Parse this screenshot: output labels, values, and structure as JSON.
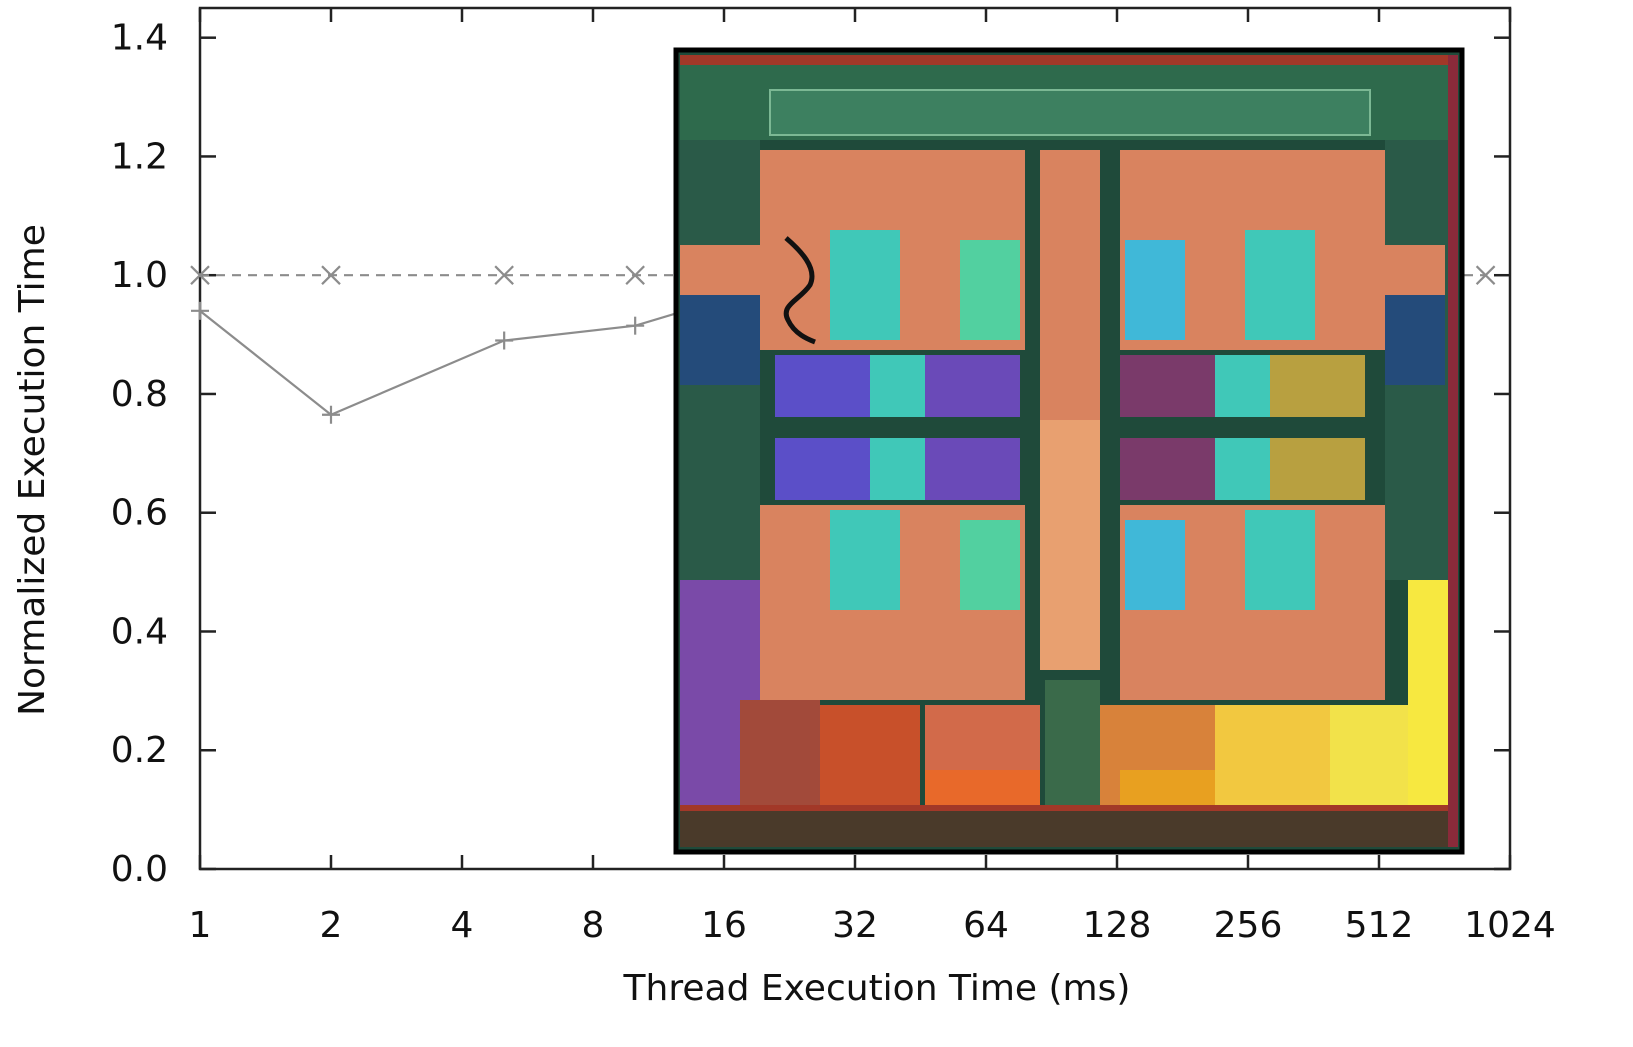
{
  "chart_data": {
    "type": "line",
    "xlabel": "Thread Execution Time (ms)",
    "ylabel": "Normalized Execution Time",
    "x_scale": "log2",
    "xlim": [
      1,
      1024
    ],
    "ylim": [
      0.0,
      1.45
    ],
    "x_ticks": [
      1,
      2,
      4,
      8,
      16,
      32,
      64,
      128,
      256,
      512,
      1024
    ],
    "x_tick_labels": [
      "1",
      "2",
      "4",
      "8",
      "16",
      "32",
      "64",
      "128",
      "256",
      "512",
      "1024"
    ],
    "y_ticks": [
      0.0,
      0.2,
      0.4,
      0.6,
      0.8,
      1.0,
      1.2,
      1.4
    ],
    "y_tick_labels": [
      "0.0",
      "0.2",
      "0.4",
      "0.6",
      "0.8",
      "1.0",
      "1.2",
      "1.4"
    ],
    "grid": false,
    "legend": "none",
    "series": [
      {
        "style": "dashed",
        "marker": "x",
        "color": "#8c8c8c",
        "x": [
          1,
          2,
          5,
          10,
          900
        ],
        "y": [
          1.0,
          1.0,
          1.0,
          1.0,
          1.0
        ]
      },
      {
        "style": "solid",
        "marker": "+",
        "color": "#8c8c8c",
        "x": [
          1,
          2,
          5,
          10,
          13
        ],
        "y": [
          0.94,
          0.765,
          0.89,
          0.915,
          0.94
        ]
      }
    ],
    "inset_image": {
      "description_icon": "processor-die-photo-icon",
      "colors": {
        "frame": "#000000",
        "bg": "#1f4a3a",
        "copper": "#d9835f",
        "cyan": "#40c8b8",
        "blue": "#5b4fc8",
        "purple": "#7a4aa8",
        "yellow": "#f2e24a",
        "orange": "#e8692a",
        "red": "#a23828"
      }
    }
  }
}
